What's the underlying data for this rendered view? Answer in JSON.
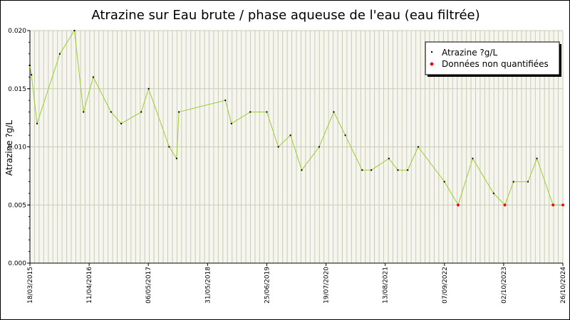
{
  "chart_data": {
    "type": "line",
    "title": "Atrazine sur Eau brute / phase aqueuse de l'eau (eau filtrée)",
    "xlabel": "",
    "ylabel": "Atrazine ?g/L",
    "ylim": [
      0,
      0.02
    ],
    "xlim": [
      "2015-03-18",
      "2024-10-26"
    ],
    "y_ticks": [
      "0.000",
      "0.005",
      "0.010",
      "0.015",
      "0.020"
    ],
    "x_ticks": [
      "18/03/2015",
      "11/04/2016",
      "06/05/2017",
      "31/05/2018",
      "25/06/2019",
      "19/07/2020",
      "13/08/2021",
      "07/09/2022",
      "02/10/2023",
      "26/10/2024"
    ],
    "grid": true,
    "legend_position": "top-right",
    "series": [
      {
        "name": "Atrazine ?g/L",
        "color": "#9acd32",
        "marker_color": "#000000",
        "points": [
          [
            "2015-03-18",
            0.017
          ],
          [
            "2015-03-28",
            0.0162
          ],
          [
            "2015-05-04",
            0.012
          ],
          [
            "2015-10-01",
            0.018
          ],
          [
            "2016-01-05",
            0.02
          ],
          [
            "2016-03-05",
            0.013
          ],
          [
            "2016-05-08",
            0.016
          ],
          [
            "2016-09-02",
            0.013
          ],
          [
            "2016-11-08",
            0.012
          ],
          [
            "2017-03-20",
            0.013
          ],
          [
            "2017-05-08",
            0.015
          ],
          [
            "2017-09-20",
            0.01
          ],
          [
            "2017-11-08",
            0.009
          ],
          [
            "2017-11-23",
            0.013
          ],
          [
            "2018-09-25",
            0.014
          ],
          [
            "2018-11-04",
            0.012
          ],
          [
            "2019-03-08",
            0.013
          ],
          [
            "2019-06-25",
            0.013
          ],
          [
            "2019-09-09",
            0.01
          ],
          [
            "2019-11-28",
            0.011
          ],
          [
            "2020-02-10",
            0.008
          ],
          [
            "2020-06-04",
            0.01
          ],
          [
            "2020-09-08",
            0.013
          ],
          [
            "2020-11-23",
            0.011
          ],
          [
            "2021-03-14",
            0.008
          ],
          [
            "2021-05-13",
            0.008
          ],
          [
            "2021-09-06",
            0.009
          ],
          [
            "2021-11-04",
            0.008
          ],
          [
            "2022-01-08",
            0.008
          ],
          [
            "2022-03-18",
            0.01
          ],
          [
            "2022-09-07",
            0.007
          ],
          [
            "2022-12-06",
            0.005
          ],
          [
            "2023-03-12",
            0.009
          ],
          [
            "2023-07-28",
            0.006
          ],
          [
            "2023-10-10",
            0.005
          ],
          [
            "2023-12-06",
            0.007
          ],
          [
            "2024-03-10",
            0.007
          ],
          [
            "2024-05-08",
            0.009
          ],
          [
            "2024-08-22",
            0.005
          ],
          [
            "2024-10-26",
            0.005
          ]
        ]
      },
      {
        "name": "Données non quantifiées",
        "color": "#ff0000",
        "points": [
          [
            "2022-12-06",
            0.005
          ],
          [
            "2023-10-10",
            0.005
          ],
          [
            "2024-08-22",
            0.005
          ],
          [
            "2024-10-26",
            0.005
          ]
        ]
      }
    ]
  }
}
